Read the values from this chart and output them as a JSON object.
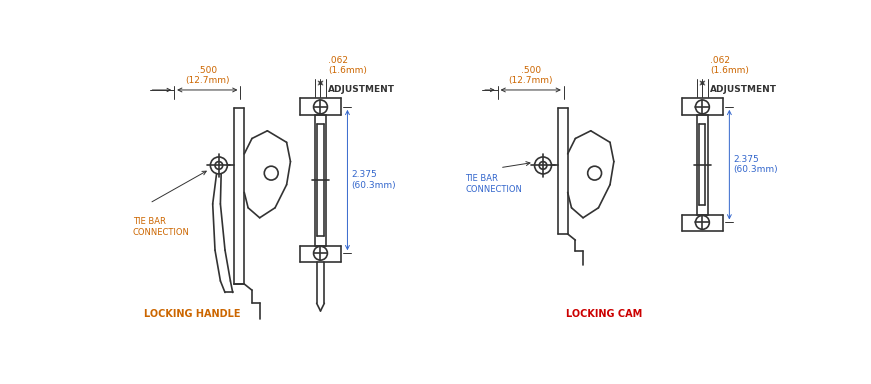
{
  "bg_color": "#ffffff",
  "line_color": "#333333",
  "dim_color_orange": "#cc6600",
  "dim_color_blue": "#3366cc",
  "red_color": "#cc0000",
  "locking_handle_label": "LOCKING HANDLE",
  "locking_cam_label": "LOCKING CAM",
  "tie_bar_label_left": "TIE BAR\nCONNECTION",
  "tie_bar_label_right": "TIE BAR\nCONNECTION",
  "adjustment_label": "ADJUSTMENT",
  "dim_500": ".500\n(12.7mm)",
  "dim_062": ".062\n(1.6mm)",
  "dim_2375": "2.375\n(60.3mm)"
}
